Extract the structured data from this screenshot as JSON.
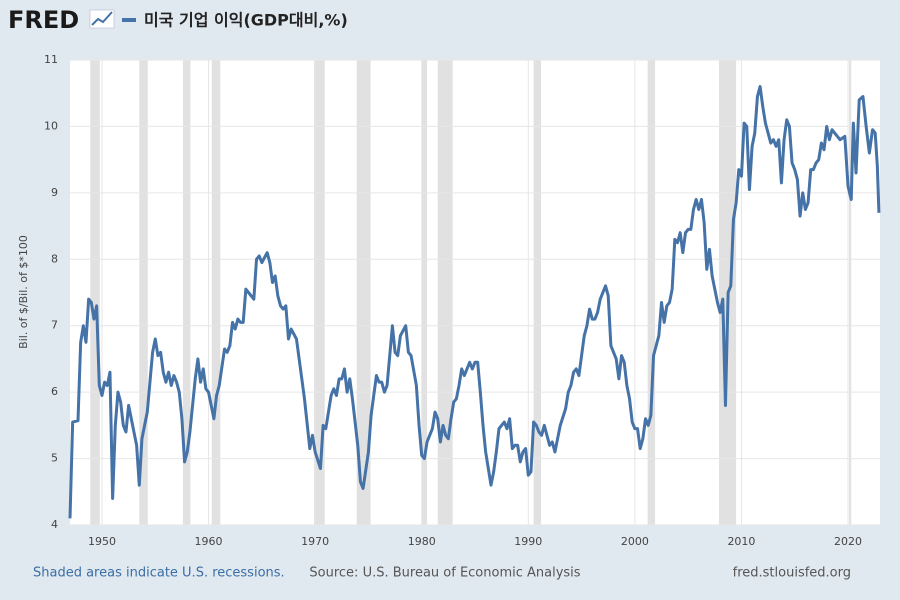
{
  "logo": "FRED",
  "chart_data": {
    "type": "line",
    "y_label": "Bil. of $/Bil. of $*100",
    "x": [
      1947.0,
      1947.25,
      1947.75,
      1948.0,
      1948.25,
      1948.5,
      1948.75,
      1949.0,
      1949.25,
      1949.5,
      1949.75,
      1950.0,
      1950.25,
      1950.5,
      1950.75,
      1951.0,
      1951.25,
      1951.5,
      1951.75,
      1952.0,
      1952.25,
      1952.5,
      1952.75,
      1953.0,
      1953.25,
      1953.5,
      1953.75,
      1954.0,
      1954.25,
      1954.75,
      1955.0,
      1955.25,
      1955.5,
      1955.75,
      1956.0,
      1956.25,
      1956.5,
      1956.75,
      1957.0,
      1957.25,
      1957.5,
      1957.75,
      1958.0,
      1958.25,
      1958.75,
      1959.0,
      1959.25,
      1959.5,
      1959.75,
      1960.0,
      1960.25,
      1960.5,
      1960.75,
      1961.0,
      1961.5,
      1961.75,
      1962.0,
      1962.25,
      1962.5,
      1962.75,
      1963.0,
      1963.25,
      1963.5,
      1963.75,
      1964.25,
      1964.5,
      1964.75,
      1965.0,
      1965.5,
      1965.75,
      1966.0,
      1966.25,
      1966.5,
      1966.75,
      1967.0,
      1967.25,
      1967.5,
      1967.75,
      1968.25,
      1968.5,
      1968.75,
      1969.0,
      1969.5,
      1969.75,
      1970.0,
      1970.5,
      1970.75,
      1971.0,
      1971.5,
      1971.75,
      1972.0,
      1972.25,
      1972.5,
      1972.75,
      1973.0,
      1973.25,
      1973.5,
      1974.0,
      1974.25,
      1974.5,
      1975.0,
      1975.25,
      1975.75,
      1976.0,
      1976.25,
      1976.5,
      1976.75,
      1977.0,
      1977.25,
      1977.5,
      1977.75,
      1978.0,
      1978.5,
      1978.75,
      1979.0,
      1979.5,
      1979.75,
      1980.0,
      1980.25,
      1980.5,
      1980.75,
      1981.0,
      1981.25,
      1981.5,
      1981.75,
      1982.0,
      1982.25,
      1982.5,
      1982.75,
      1983.0,
      1983.25,
      1983.5,
      1983.75,
      1984.0,
      1984.5,
      1984.75,
      1985.0,
      1985.25,
      1985.5,
      1985.75,
      1986.0,
      1986.5,
      1986.75,
      1987.0,
      1987.25,
      1987.5,
      1987.75,
      1988.0,
      1988.25,
      1988.5,
      1988.75,
      1989.0,
      1989.25,
      1989.5,
      1989.75,
      1990.0,
      1990.25,
      1990.5,
      1990.75,
      1991.0,
      1991.25,
      1991.5,
      1991.75,
      1992.0,
      1992.25,
      1992.5,
      1992.75,
      1993.0,
      1993.5,
      1993.75,
      1994.0,
      1994.25,
      1994.5,
      1994.75,
      1995.0,
      1995.25,
      1995.5,
      1995.75,
      1996.0,
      1996.25,
      1996.5,
      1996.75,
      1997.25,
      1997.5,
      1997.75,
      1998.0,
      1998.25,
      1998.5,
      1998.75,
      1999.0,
      1999.25,
      1999.5,
      1999.75,
      2000.0,
      2000.25,
      2000.5,
      2000.75,
      2001.0,
      2001.25,
      2001.5,
      2001.75,
      2002.0,
      2002.25,
      2002.5,
      2002.75,
      2003.0,
      2003.25,
      2003.5,
      2003.75,
      2004.0,
      2004.25,
      2004.5,
      2004.75,
      2005.0,
      2005.25,
      2005.5,
      2005.75,
      2006.0,
      2006.25,
      2006.5,
      2006.75,
      2007.0,
      2007.25,
      2007.5,
      2007.75,
      2008.0,
      2008.25,
      2008.5,
      2008.75,
      2009.0,
      2009.25,
      2009.5,
      2009.75,
      2010.0,
      2010.25,
      2010.5,
      2010.75,
      2011.0,
      2011.25,
      2011.5,
      2011.75,
      2012.0,
      2012.25,
      2012.5,
      2012.75,
      2013.0,
      2013.25,
      2013.5,
      2013.75,
      2014.0,
      2014.25,
      2014.5,
      2014.75,
      2015.0,
      2015.25,
      2015.5,
      2015.75,
      2016.0,
      2016.25,
      2016.5,
      2016.75,
      2017.0,
      2017.25,
      2017.5,
      2017.75,
      2018.0,
      2018.25,
      2018.5,
      2018.75,
      2019.25,
      2019.7,
      2020.0,
      2020.3,
      2020.5,
      2020.75,
      2021.05,
      2021.4,
      2021.7,
      2022.0,
      2022.3,
      2022.55,
      2022.75,
      2022.9
    ],
    "series": [
      {
        "name": "미국 기업 이익(GDP대비,%)",
        "color": "#4572a7",
        "values": [
          4.1,
          5.55,
          5.57,
          6.75,
          7.0,
          6.75,
          7.4,
          7.35,
          7.1,
          7.3,
          6.1,
          5.95,
          6.15,
          6.1,
          6.3,
          4.4,
          5.5,
          6.0,
          5.85,
          5.5,
          5.4,
          5.8,
          5.6,
          5.4,
          5.2,
          4.6,
          5.3,
          5.5,
          5.7,
          6.6,
          6.8,
          6.55,
          6.6,
          6.3,
          6.15,
          6.3,
          6.1,
          6.25,
          6.15,
          6.0,
          5.6,
          4.95,
          5.1,
          5.4,
          6.2,
          6.5,
          6.15,
          6.35,
          6.05,
          6.0,
          5.8,
          5.6,
          5.95,
          6.1,
          6.65,
          6.6,
          6.7,
          7.05,
          6.95,
          7.1,
          7.05,
          7.05,
          7.55,
          7.5,
          7.4,
          8.0,
          8.05,
          7.95,
          8.1,
          7.95,
          7.65,
          7.75,
          7.45,
          7.3,
          7.25,
          7.3,
          6.8,
          6.95,
          6.8,
          6.5,
          6.2,
          5.9,
          5.15,
          5.35,
          5.1,
          4.85,
          5.5,
          5.45,
          5.95,
          6.05,
          5.95,
          6.2,
          6.2,
          6.35,
          6.0,
          6.2,
          5.9,
          5.2,
          4.65,
          4.55,
          5.1,
          5.65,
          6.25,
          6.15,
          6.15,
          6.0,
          6.1,
          6.55,
          7.0,
          6.6,
          6.55,
          6.85,
          7.0,
          6.6,
          6.55,
          6.1,
          5.5,
          5.05,
          5.0,
          5.25,
          5.35,
          5.45,
          5.7,
          5.6,
          5.25,
          5.5,
          5.35,
          5.3,
          5.6,
          5.85,
          5.9,
          6.1,
          6.35,
          6.25,
          6.45,
          6.35,
          6.45,
          6.45,
          6.0,
          5.5,
          5.1,
          4.6,
          4.8,
          5.1,
          5.45,
          5.5,
          5.55,
          5.45,
          5.6,
          5.15,
          5.2,
          5.2,
          4.95,
          5.1,
          5.15,
          4.75,
          4.8,
          5.55,
          5.5,
          5.4,
          5.35,
          5.5,
          5.35,
          5.2,
          5.25,
          5.1,
          5.3,
          5.5,
          5.75,
          6.0,
          6.1,
          6.3,
          6.35,
          6.25,
          6.55,
          6.85,
          7.0,
          7.25,
          7.1,
          7.1,
          7.2,
          7.4,
          7.6,
          7.45,
          6.7,
          6.6,
          6.5,
          6.2,
          6.55,
          6.45,
          6.1,
          5.9,
          5.55,
          5.45,
          5.45,
          5.15,
          5.3,
          5.6,
          5.5,
          5.65,
          6.55,
          6.7,
          6.85,
          7.35,
          7.05,
          7.3,
          7.35,
          7.55,
          8.3,
          8.25,
          8.4,
          8.1,
          8.4,
          8.45,
          8.45,
          8.75,
          8.9,
          8.75,
          8.9,
          8.55,
          7.85,
          8.15,
          7.75,
          7.55,
          7.35,
          7.2,
          7.4,
          5.8,
          7.5,
          7.6,
          8.6,
          8.85,
          9.35,
          9.25,
          10.05,
          10.0,
          9.05,
          9.7,
          9.9,
          10.45,
          10.6,
          10.3,
          10.05,
          9.9,
          9.75,
          9.8,
          9.7,
          9.8,
          9.15,
          9.8,
          10.1,
          10.0,
          9.45,
          9.35,
          9.2,
          8.65,
          9.0,
          8.75,
          8.85,
          9.35,
          9.35,
          9.45,
          9.5,
          9.75,
          9.65,
          10.0,
          9.8,
          9.95,
          9.9,
          9.8,
          9.85,
          9.1,
          8.9,
          10.05,
          9.3,
          10.4,
          10.45,
          10.0,
          9.6,
          9.95,
          9.9,
          9.4,
          8.7
        ]
      }
    ],
    "xlim": [
      1947,
      2023
    ],
    "xticks": [
      1950,
      1960,
      1970,
      1980,
      1990,
      2000,
      2010,
      2020
    ],
    "ylim": [
      4,
      11
    ],
    "yticks": [
      4,
      5,
      6,
      7,
      8,
      9,
      10,
      11
    ],
    "grid": true,
    "recessions": [
      [
        1948.9,
        1949.8
      ],
      [
        1953.5,
        1954.3
      ],
      [
        1957.6,
        1958.3
      ],
      [
        1960.3,
        1961.1
      ],
      [
        1969.9,
        1970.9
      ],
      [
        1973.9,
        1975.2
      ],
      [
        1980.0,
        1980.5
      ],
      [
        1981.5,
        1982.9
      ],
      [
        1990.5,
        1991.2
      ],
      [
        2001.2,
        2001.9
      ],
      [
        2007.9,
        2009.5
      ],
      [
        2020.1,
        2020.3
      ]
    ],
    "recession_color": "#e1e1e1",
    "footer": {
      "left": "Shaded areas indicate U.S. recessions.",
      "center": "Source: U.S. Bureau of Economic Analysis",
      "right": "fred.stlouisfed.org"
    }
  }
}
